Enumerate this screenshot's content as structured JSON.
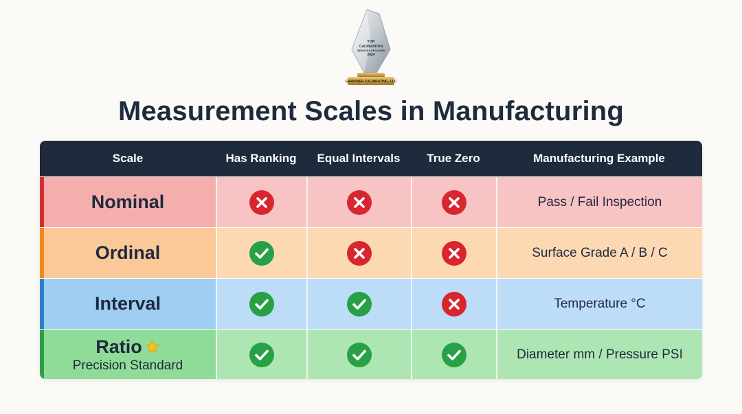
{
  "award": {
    "lines": [
      "TOP",
      "CALIBRATION",
      "SERVICES PROVIDER",
      "2024"
    ],
    "base_text": "GARDINER CALIBRATING, LLC"
  },
  "title": "Measurement Scales in Manufacturing",
  "table": {
    "headers": [
      "Scale",
      "Has Ranking",
      "Equal Intervals",
      "True Zero",
      "Manufacturing Example"
    ],
    "rows": [
      {
        "scale": "Nominal",
        "subtitle": "",
        "has_ranking": "no",
        "equal_intervals": "no",
        "true_zero": "no",
        "example": "Pass / Fail Inspection",
        "fill": "#f5aeae",
        "cell_fill": "#f8c3c3",
        "accent": "#d32f2f"
      },
      {
        "scale": "Ordinal",
        "subtitle": "",
        "has_ranking": "yes",
        "equal_intervals": "no",
        "true_zero": "no",
        "example": "Surface Grade A / B / C",
        "fill": "#fbc897",
        "cell_fill": "#fcd9b3",
        "accent": "#f08a1c"
      },
      {
        "scale": "Interval",
        "subtitle": "",
        "has_ranking": "yes",
        "equal_intervals": "yes",
        "true_zero": "no",
        "example": "Temperature °C",
        "fill": "#9fcdf3",
        "cell_fill": "#bcdcf8",
        "accent": "#2f7fc9"
      },
      {
        "scale": "Ratio",
        "subtitle": "Precision Standard",
        "has_ranking": "yes",
        "equal_intervals": "yes",
        "true_zero": "yes",
        "example": "Diameter mm / Pressure PSI",
        "fill": "#8fdc98",
        "cell_fill": "#aee6b3",
        "accent": "#2e9e48",
        "star": true
      }
    ]
  },
  "colors": {
    "header_bg": "#1f2a3d",
    "check": "#27a046",
    "cross": "#d8262e",
    "star": "#f5c518"
  },
  "icons": {
    "yes": "check-circle-icon",
    "no": "x-circle-icon",
    "star": "star-icon"
  }
}
